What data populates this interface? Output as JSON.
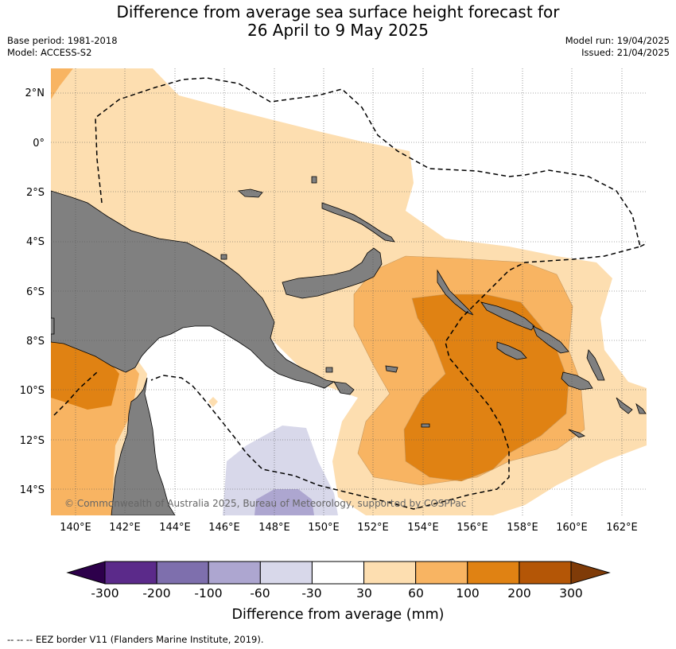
{
  "title": {
    "line1": "Difference from average sea surface height forecast for",
    "line2": "26 April to 9 May 2025"
  },
  "meta_left": {
    "base_period": "Base period: 1981-2018",
    "model": "Model: ACCESS-S2"
  },
  "meta_right": {
    "model_run": "Model run: 19/04/2025",
    "issued": "Issued: 21/04/2025"
  },
  "map": {
    "lon_labels": [
      "140°E",
      "142°E",
      "144°E",
      "146°E",
      "148°E",
      "150°E",
      "152°E",
      "154°E",
      "156°E",
      "158°E",
      "160°E",
      "162°E"
    ],
    "lat_labels": [
      "2°N",
      "0°",
      "2°S",
      "4°S",
      "6°S",
      "8°S",
      "10°S",
      "12°S",
      "14°S"
    ],
    "copyright": "© Commonwealth of Australia 2025, Bureau of Meteorology, supported by COSPPac",
    "land_color": "#808080"
  },
  "colorbar": {
    "title": "Difference from average (mm)",
    "tick_labels": [
      "-300",
      "-200",
      "-100",
      "-60",
      "-30",
      "30",
      "60",
      "100",
      "200",
      "300"
    ],
    "colors": [
      "#5b2a8a",
      "#7e6fad",
      "#ada6d0",
      "#d8d8ea",
      "#ffffff",
      "#fddeb0",
      "#f8b462",
      "#e08213",
      "#b45606"
    ],
    "extend_low_color": "#2d004b",
    "extend_high_color": "#7f3b08"
  },
  "footer": "--  --  -- EEZ border V11 (Flanders Marine Institute, 2019)."
}
